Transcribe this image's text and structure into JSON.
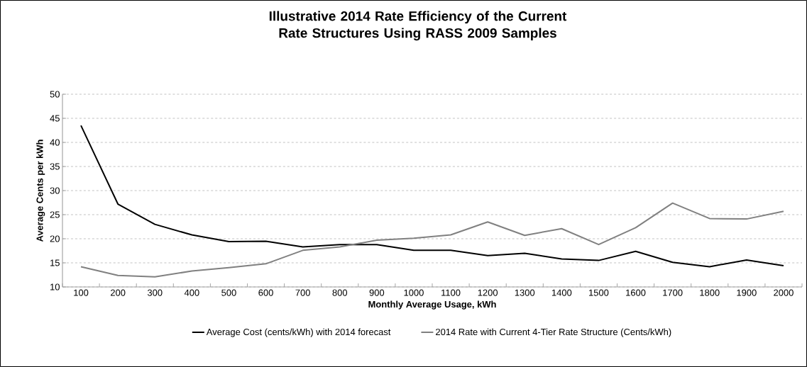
{
  "chart_data": {
    "type": "line",
    "title": "Illustrative 2014 Rate Efficiency of the Current Rate Structures Using RASS 2009 Samples",
    "xlabel": "Monthly Average Usage, kWh",
    "ylabel": "Average Cents per kWh",
    "categories": [
      "100",
      "200",
      "300",
      "400",
      "500",
      "600",
      "700",
      "800",
      "900",
      "1000",
      "1100",
      "1200",
      "1300",
      "1400",
      "1500",
      "1600",
      "1700",
      "1800",
      "1900",
      "2000"
    ],
    "series": [
      {
        "name": "Average Cost (cents/kWh) with 2014 forecast",
        "color": "#000000",
        "values": [
          43.5,
          27.2,
          23.0,
          20.8,
          19.4,
          19.5,
          18.3,
          18.8,
          18.8,
          17.6,
          17.6,
          16.5,
          17.0,
          15.8,
          15.5,
          17.4,
          15.1,
          14.2,
          15.6,
          14.4
        ]
      },
      {
        "name": "2014 Rate with Current 4-Tier Rate Structure (Cents/kWh)",
        "color": "#808080",
        "values": [
          14.2,
          12.4,
          12.1,
          13.3,
          14.0,
          14.8,
          17.6,
          18.3,
          19.7,
          20.1,
          20.8,
          23.5,
          20.7,
          22.1,
          18.8,
          22.3,
          27.4,
          24.2,
          24.1,
          25.7
        ]
      }
    ],
    "ylim": [
      10,
      50
    ],
    "yticks": [
      10,
      15,
      20,
      25,
      30,
      35,
      40,
      45,
      50
    ],
    "grid": "y",
    "legend": "bottom",
    "marker": "none",
    "line_style": "solid"
  }
}
